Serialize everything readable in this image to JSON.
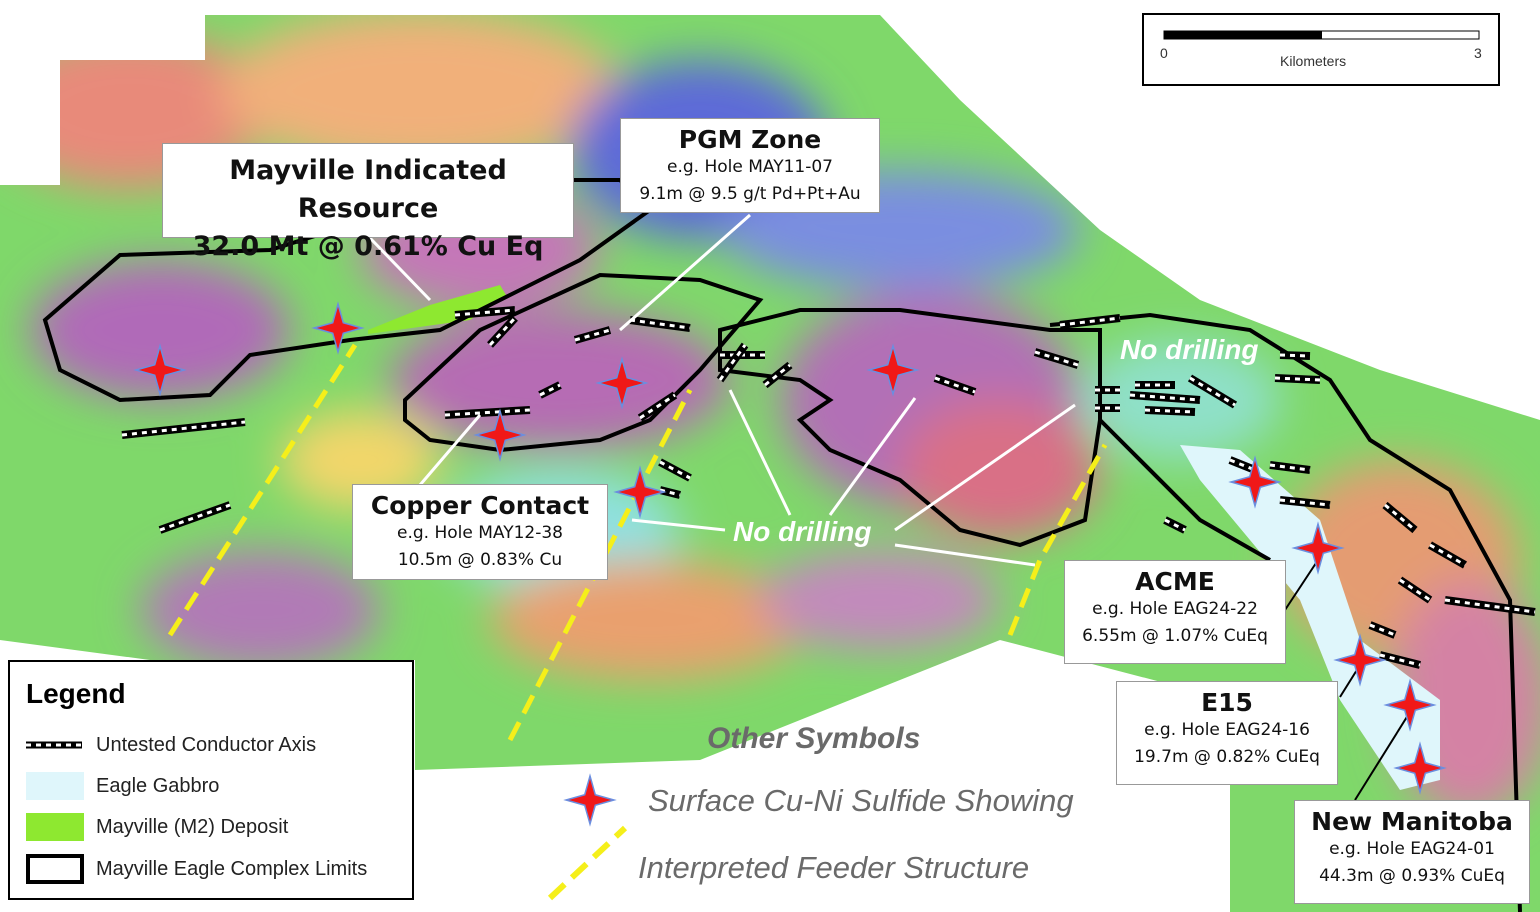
{
  "scale_bar": {
    "start": "0",
    "end": "3",
    "unit": "Kilometers"
  },
  "callouts": [
    {
      "title": "Mayville Indicated Resource",
      "lines": [
        "32.0 Mt @ 0.61% Cu Eq"
      ]
    },
    {
      "title": "PGM Zone",
      "lines": [
        "e.g. Hole MAY11-07",
        "9.1m @ 9.5 g/t Pd+Pt+Au"
      ]
    },
    {
      "title": "Copper Contact",
      "lines": [
        "e.g. Hole MAY12-38",
        "10.5m @ 0.83% Cu"
      ]
    },
    {
      "title": "ACME",
      "lines": [
        "e.g. Hole EAG24-22",
        "6.55m @ 1.07% CuEq"
      ]
    },
    {
      "title": "E15",
      "lines": [
        "e.g. Hole EAG24-16",
        "19.7m @ 0.82% CuEq"
      ]
    },
    {
      "title": "New Manitoba",
      "lines": [
        "e.g. Hole EAG24-01",
        "44.3m @ 0.93% CuEq"
      ]
    }
  ],
  "annotations": [
    "No drilling",
    "No drilling"
  ],
  "legend": {
    "title": "Legend",
    "items": [
      "Untested Conductor Axis",
      "Eagle Gabbro",
      "Mayville (M2) Deposit",
      "Mayville Eagle Complex Limits"
    ]
  },
  "other_symbols": {
    "title": "Other Symbols",
    "items": [
      "Surface Cu-Ni Sulfide Showing",
      "Interpreted Feeder Structure"
    ]
  }
}
